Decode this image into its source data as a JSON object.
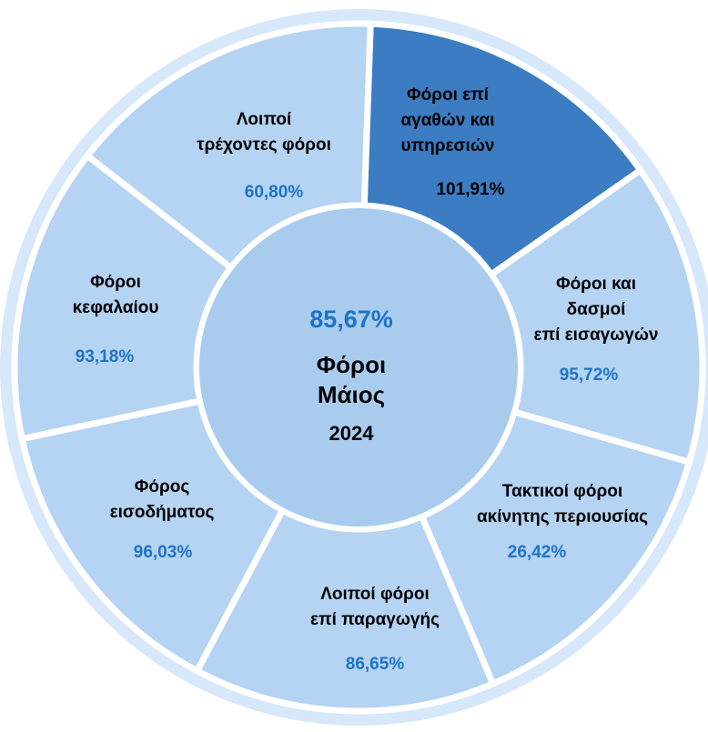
{
  "colors": {
    "segment_fill": "#b5d3f2",
    "segment_fill_highlight": "#3b7cc2",
    "center_fill": "#a9ccee",
    "outer_ring": "#d6e8f9",
    "value_text": "#1b74c8",
    "value_text_highlight": "#000000",
    "divider": "#ffffff"
  },
  "center": {
    "value": "85,67%",
    "title_line1": "Φόροι",
    "title_line2": "Μάιος",
    "year": "2024"
  },
  "segments": [
    {
      "label_lines": [
        "Φόροι επί",
        "αγαθών και",
        "υπηρεσιών"
      ],
      "value": "101,91%",
      "highlight": true
    },
    {
      "label_lines": [
        "Φόροι και",
        "δασμοί",
        "επί εισαγωγών"
      ],
      "value": "95,72%",
      "highlight": false
    },
    {
      "label_lines": [
        "Τακτικοί φόροι",
        "ακίνητης περιουσίας"
      ],
      "value": "26,42%",
      "highlight": false
    },
    {
      "label_lines": [
        "Λοιποί φόροι",
        "επί παραγωγής"
      ],
      "value": "86,65%",
      "highlight": false
    },
    {
      "label_lines": [
        "Φόρος",
        "εισοδήματος"
      ],
      "value": "96,03%",
      "highlight": false
    },
    {
      "label_lines": [
        "Φόροι",
        "κεφαλαίου"
      ],
      "value": "93,18%",
      "highlight": false
    },
    {
      "label_lines": [
        "Λοιποί",
        "τρέχοντες φόροι"
      ],
      "value": "60,80%",
      "highlight": false
    }
  ]
}
